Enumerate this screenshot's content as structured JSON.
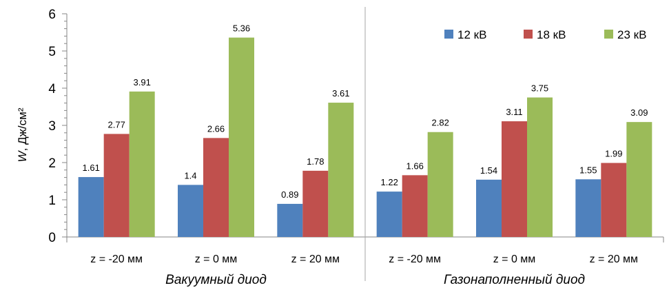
{
  "chart_data": {
    "type": "bar",
    "title": "",
    "ylabel": "W, Дж/см²",
    "ylabel_parts": {
      "var": "W",
      "unit": ", Дж/см²"
    },
    "xlabel": "",
    "ylim": [
      0,
      6
    ],
    "yticks": [
      0,
      1,
      2,
      3,
      4,
      5,
      6
    ],
    "grid": false,
    "legend_position": "top-right",
    "categories": [
      "z = -20 мм",
      "z = 0 мм",
      "z = 20 мм",
      "z = -20 мм",
      "z = 0 мм",
      "z = 20 мм"
    ],
    "groups": [
      {
        "label": "Вакуумный диод",
        "categories": [
          0,
          1,
          2
        ]
      },
      {
        "label": "Газонаполненный диод",
        "categories": [
          3,
          4,
          5
        ]
      }
    ],
    "series": [
      {
        "name": "12 кВ",
        "color": "#4f81bd",
        "values": [
          1.61,
          1.4,
          0.89,
          1.22,
          1.54,
          1.55
        ]
      },
      {
        "name": "18 кВ",
        "color": "#c0504d",
        "values": [
          2.77,
          2.66,
          1.78,
          1.66,
          3.11,
          1.99
        ]
      },
      {
        "name": "23 кВ",
        "color": "#9bbb59",
        "values": [
          3.91,
          5.36,
          3.61,
          2.82,
          3.75,
          3.09
        ]
      }
    ],
    "value_labels": [
      [
        "1.61",
        "1.4",
        "0.89",
        "1.22",
        "1.54",
        "1.55"
      ],
      [
        "2.77",
        "2.66",
        "1.78",
        "1.66",
        "3.11",
        "1.99"
      ],
      [
        "3.91",
        "5.36",
        "3.61",
        "2.82",
        "3.75",
        "3.09"
      ]
    ]
  }
}
